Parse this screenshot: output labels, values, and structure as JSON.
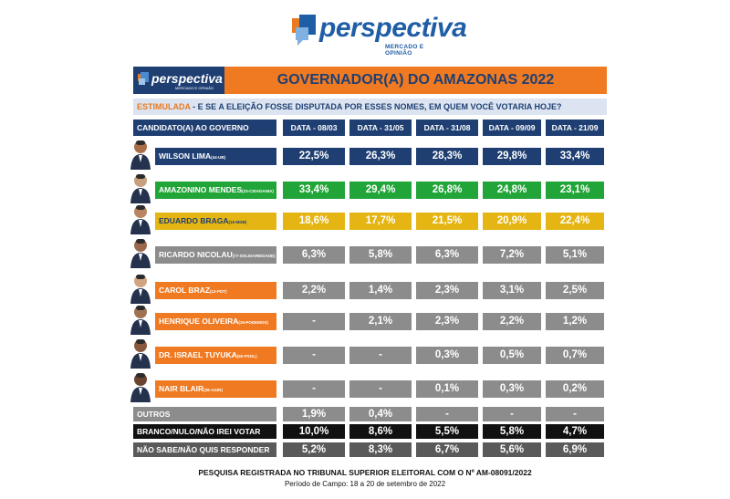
{
  "brand": {
    "name": "perspectiva",
    "tagline": "MERCADO E OPINIÃO"
  },
  "colors": {
    "navy": "#1f3f73",
    "orange": "#f07a21",
    "green": "#22a538",
    "yellow": "#e5b513",
    "gray": "#8c8c8c",
    "black": "#111111"
  },
  "header": {
    "title": "GOVERNADOR(A) DO AMAZONAS 2022"
  },
  "question": {
    "label": "ESTIMULADA",
    "text": " - E SE A ELEIÇÃO FOSSE DISPUTADA POR ESSES NOMES, EM QUEM VOCÊ VOTARIA HOJE?"
  },
  "chart_data": {
    "type": "table",
    "title": "GOVERNADOR(A) DO AMAZONAS 2022",
    "row_header": "CANDIDATO(A) AO GOVERNO",
    "columns": [
      "DATA - 08/03",
      "DATA - 31/05",
      "DATA - 31/08",
      "DATA - 09/09",
      "DATA - 21/09"
    ],
    "rows": [
      {
        "name": "WILSON LIMA",
        "party": "(44-UB)",
        "style": "navy",
        "photo": true,
        "values": [
          "22,5%",
          "26,3%",
          "28,3%",
          "29,8%",
          "33,4%"
        ]
      },
      {
        "name": "AMAZONINO MENDES",
        "party": "(23-CIDADANIA)",
        "style": "green",
        "photo": true,
        "values": [
          "33,4%",
          "29,4%",
          "26,8%",
          "24,8%",
          "23,1%"
        ]
      },
      {
        "name": "EDUARDO BRAGA",
        "party": "(15-MDB)",
        "style": "yellow",
        "photo": true,
        "values": [
          "18,6%",
          "17,7%",
          "21,5%",
          "20,9%",
          "22,4%"
        ]
      },
      {
        "name": "RICARDO NICOLAU",
        "party": "(77-SOLIDARIEDADE)",
        "style": "gray",
        "photo": true,
        "values": [
          "6,3%",
          "5,8%",
          "6,3%",
          "7,2%",
          "5,1%"
        ]
      },
      {
        "name": "CAROL BRAZ",
        "party": "(12-PDT)",
        "style": "gray",
        "photo": true,
        "values": [
          "2,2%",
          "1,4%",
          "2,3%",
          "3,1%",
          "2,5%"
        ]
      },
      {
        "name": "HENRIQUE OLIVEIRA",
        "party": "(19-PODEMOS)",
        "style": "gray",
        "photo": true,
        "values": [
          "-",
          "2,1%",
          "2,3%",
          "2,2%",
          "1,2%"
        ]
      },
      {
        "name": "DR. ISRAEL TUYUKA",
        "party": "(50-PSOL)",
        "style": "gray",
        "photo": true,
        "values": [
          "-",
          "-",
          "0,3%",
          "0,5%",
          "0,7%"
        ]
      },
      {
        "name": "NAIR BLAIR",
        "party": "(36-AGIR)",
        "style": "gray",
        "photo": true,
        "values": [
          "-",
          "-",
          "0,1%",
          "0,3%",
          "0,2%"
        ]
      },
      {
        "name": "OUTROS",
        "party": "",
        "style": "gray-plain",
        "photo": false,
        "values": [
          "1,9%",
          "0,4%",
          "-",
          "-",
          "-"
        ]
      },
      {
        "name": "BRANCO/NULO/NÃO IREI VOTAR",
        "party": "",
        "style": "black",
        "photo": false,
        "values": [
          "10,0%",
          "8,6%",
          "5,5%",
          "5,8%",
          "4,7%"
        ]
      },
      {
        "name": "NÃO SABE/NÃO QUIS RESPONDER",
        "party": "",
        "style": "darkgray",
        "photo": false,
        "values": [
          "5,2%",
          "8,3%",
          "6,7%",
          "5,6%",
          "6,9%"
        ]
      }
    ]
  },
  "footer": {
    "registration": "PESQUISA REGISTRADA NO TRIBUNAL SUPERIOR ELEITORAL COM O Nº AM-08091/2022",
    "period": "Período de Campo: 18 a 20 de setembro de 2022"
  }
}
